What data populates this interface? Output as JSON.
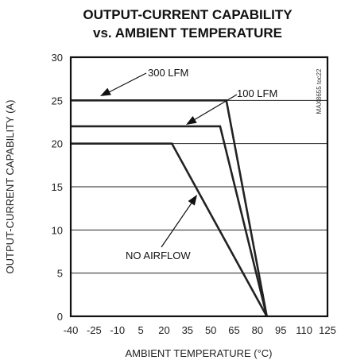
{
  "chart_data": {
    "type": "line",
    "title_line1": "OUTPUT-CURRENT CAPABILITY",
    "title_line2": "vs. AMBIENT TEMPERATURE",
    "xlabel": "AMBIENT TEMPERATURE (°C)",
    "ylabel": "OUTPUT-CURRENT CAPABILITY (A)",
    "figure_code": "MAX8655 toc22",
    "xlim": [
      -40,
      125
    ],
    "ylim": [
      0,
      30
    ],
    "xticks": [
      -40,
      -25,
      -10,
      5,
      20,
      35,
      50,
      65,
      80,
      95,
      110,
      125
    ],
    "yticks": [
      0,
      5,
      10,
      15,
      20,
      25,
      30
    ],
    "grid": "horizontal",
    "series": [
      {
        "name": "300 LFM",
        "x": [
          -40,
          60,
          86
        ],
        "y": [
          25,
          25,
          0
        ]
      },
      {
        "name": "100 LFM",
        "x": [
          -40,
          56,
          86
        ],
        "y": [
          22,
          22,
          0
        ]
      },
      {
        "name": "NO AIRFLOW",
        "x": [
          -40,
          25,
          86
        ],
        "y": [
          20,
          20,
          0
        ]
      }
    ]
  }
}
